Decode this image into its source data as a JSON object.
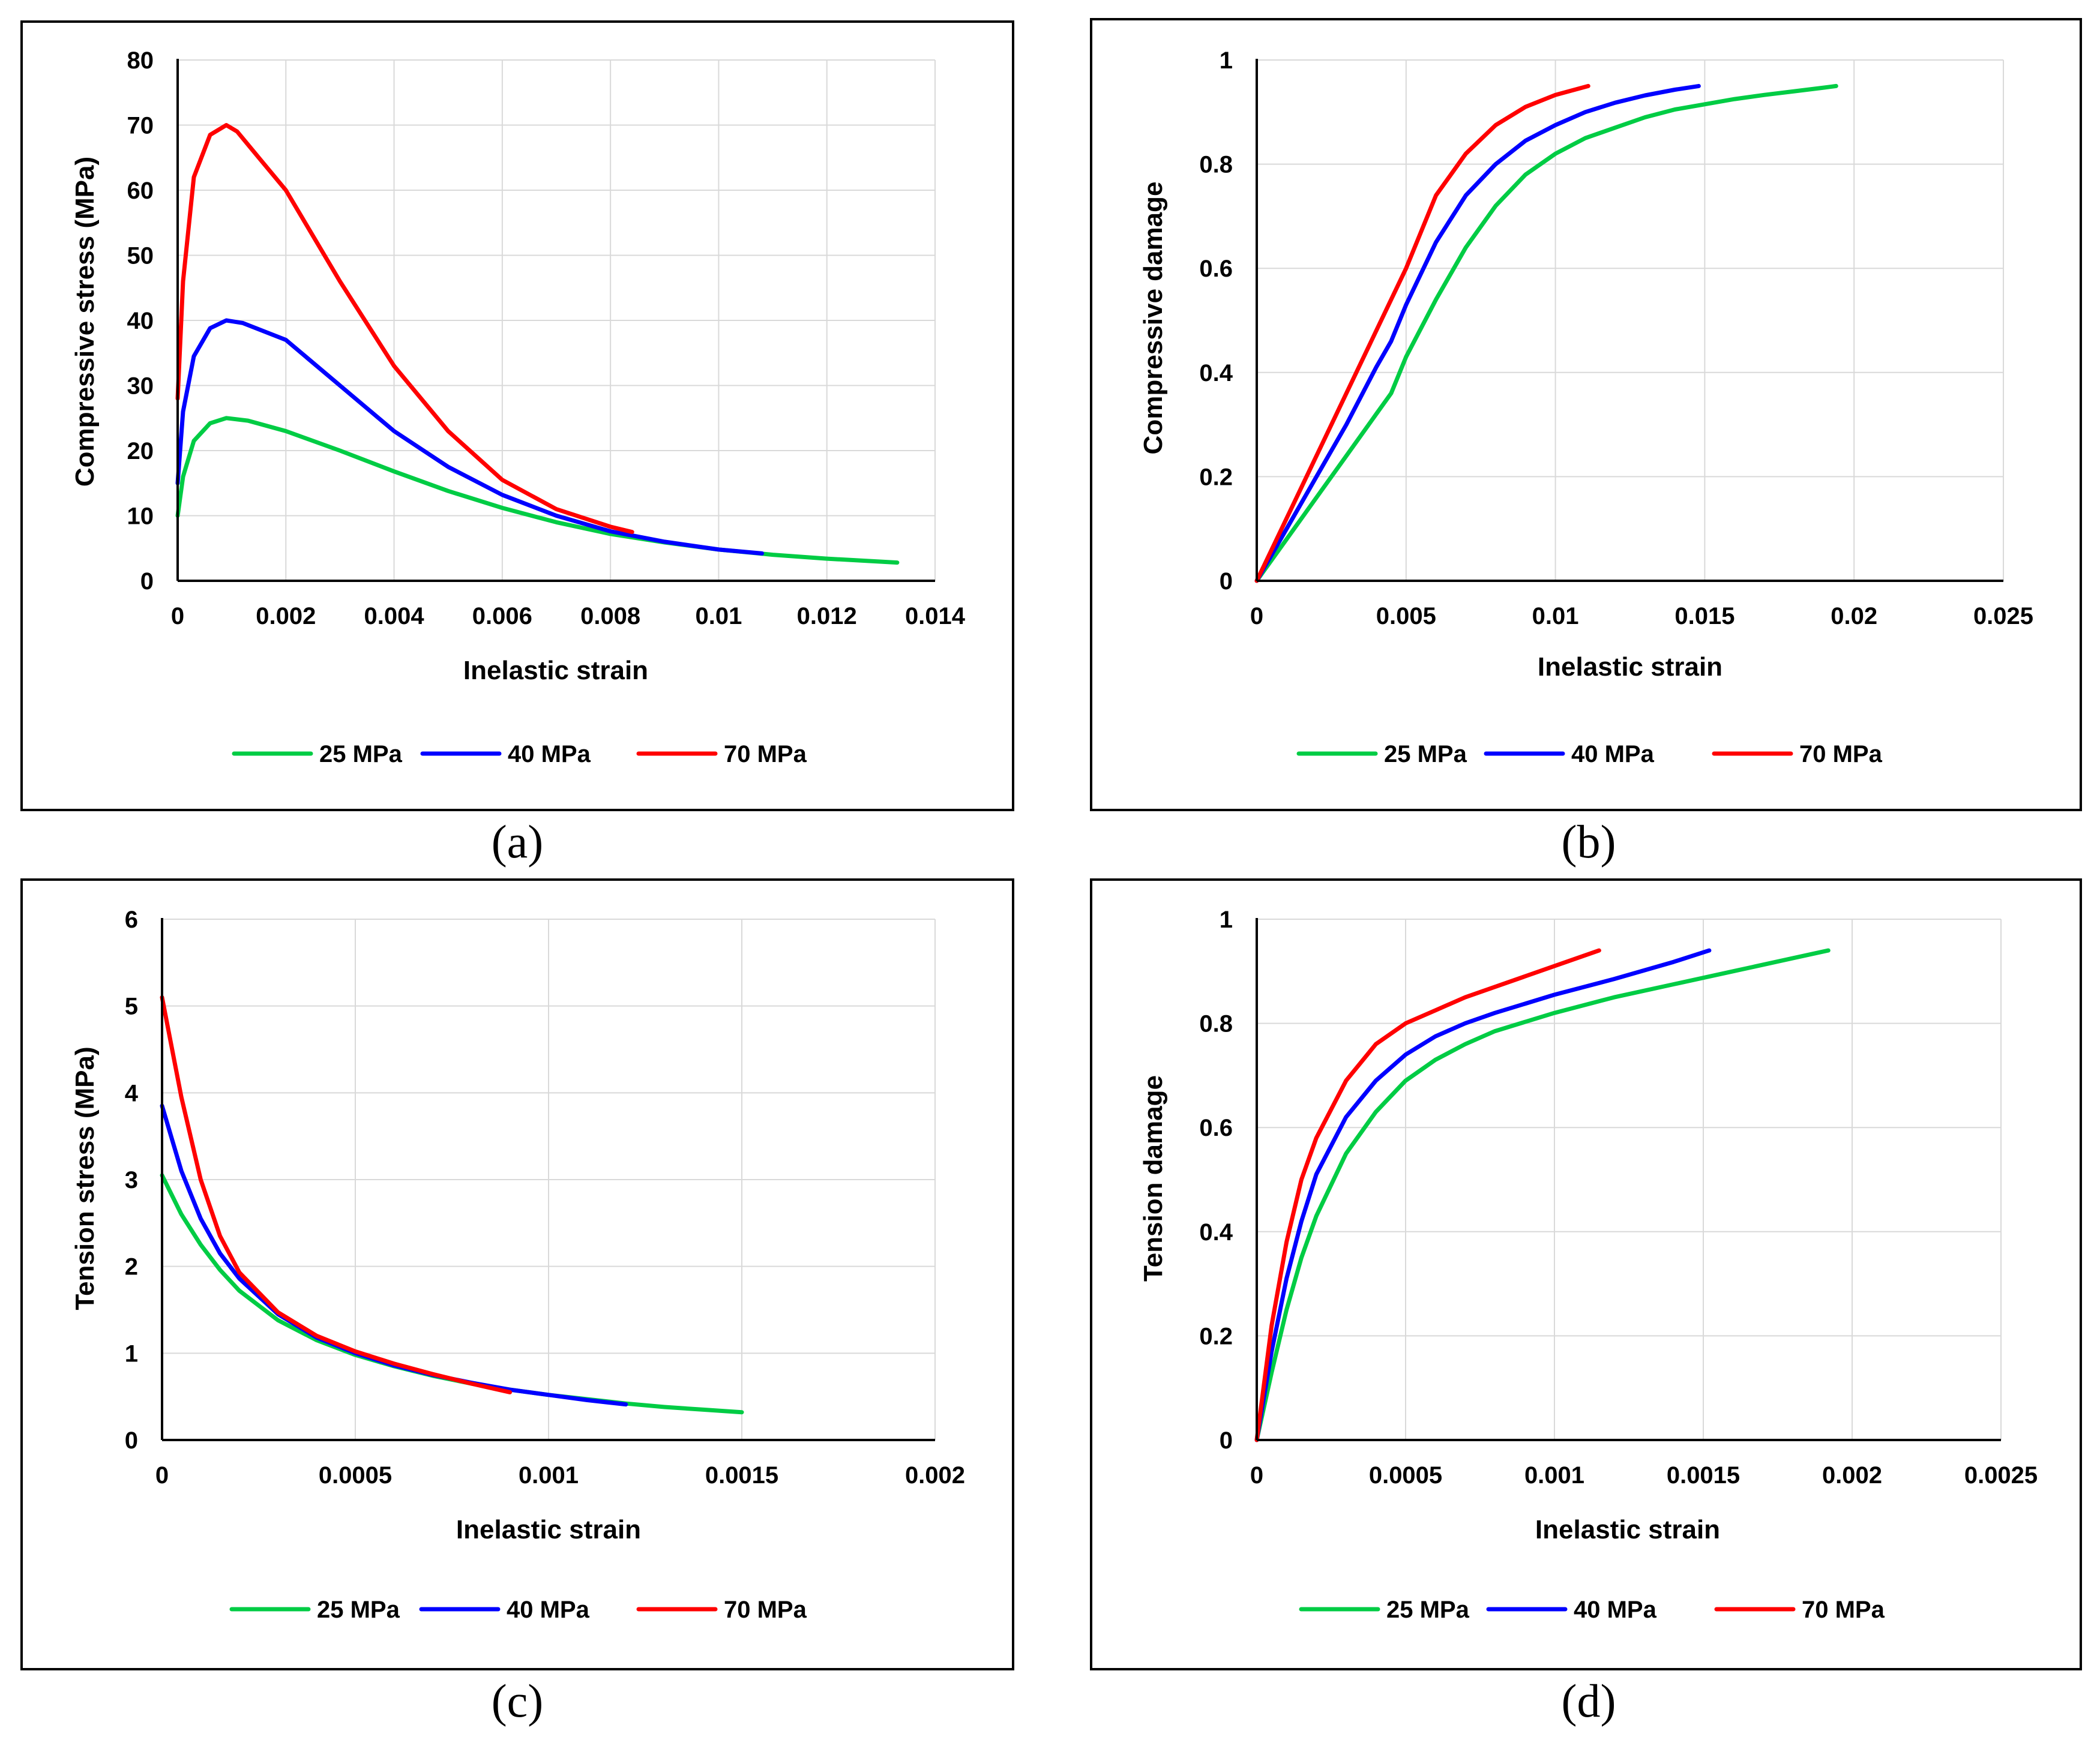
{
  "chart_data": [
    {
      "type": "line",
      "panel": "a",
      "caption": "(a)",
      "xlabel": "Inelastic strain",
      "ylabel": "Compressive stress (MPa)",
      "xlim": [
        0,
        0.014
      ],
      "ylim": [
        0,
        80
      ],
      "xticks": [
        0,
        0.002,
        0.004,
        0.006,
        0.008,
        0.01,
        0.012,
        0.014
      ],
      "xtick_labels": [
        "0",
        "0.002",
        "0.004",
        "0.006",
        "0.008",
        "0.01",
        "0.012",
        "0.014"
      ],
      "yticks": [
        0,
        10,
        20,
        30,
        40,
        50,
        60,
        70,
        80
      ],
      "ytick_labels": [
        "0",
        "10",
        "20",
        "30",
        "40",
        "50",
        "60",
        "70",
        "80"
      ],
      "legend_position": "bottom",
      "series": [
        {
          "name": "25 MPa",
          "color": "#00cc44",
          "x": [
            0,
            0.0001,
            0.0003,
            0.0006,
            0.0009,
            0.0013,
            0.002,
            0.003,
            0.004,
            0.005,
            0.006,
            0.007,
            0.008,
            0.009,
            0.01,
            0.011,
            0.012,
            0.0133
          ],
          "y": [
            10,
            16,
            21.5,
            24.2,
            25,
            24.6,
            23,
            20,
            16.8,
            13.8,
            11.2,
            9,
            7.2,
            5.9,
            4.8,
            4.0,
            3.4,
            2.8
          ]
        },
        {
          "name": "40 MPa",
          "color": "#0000ff",
          "x": [
            0,
            0.0001,
            0.0003,
            0.0006,
            0.0009,
            0.0012,
            0.002,
            0.003,
            0.004,
            0.005,
            0.006,
            0.007,
            0.008,
            0.009,
            0.01,
            0.0108
          ],
          "y": [
            15,
            26,
            34.5,
            38.8,
            40,
            39.6,
            37,
            30,
            23,
            17.5,
            13.2,
            10,
            7.6,
            6.0,
            4.8,
            4.2
          ]
        },
        {
          "name": "70 MPa",
          "color": "#ff0000",
          "x": [
            0,
            0.0001,
            0.0003,
            0.0006,
            0.0009,
            0.0011,
            0.0015,
            0.002,
            0.003,
            0.004,
            0.005,
            0.006,
            0.007,
            0.008,
            0.0084
          ],
          "y": [
            28,
            46,
            62,
            68.5,
            70,
            69,
            65,
            60,
            46,
            33,
            23,
            15.5,
            11,
            8.3,
            7.5
          ]
        }
      ]
    },
    {
      "type": "line",
      "panel": "b",
      "caption": "(b)",
      "xlabel": "Inelastic strain",
      "ylabel": "Compressive damage",
      "xlim": [
        0,
        0.025
      ],
      "ylim": [
        0,
        1
      ],
      "xticks": [
        0,
        0.005,
        0.01,
        0.015,
        0.02,
        0.025
      ],
      "xtick_labels": [
        "0",
        "0.005",
        "0.01",
        "0.015",
        "0.02",
        "0.025"
      ],
      "yticks": [
        0,
        0.2,
        0.4,
        0.6,
        0.8,
        1
      ],
      "ytick_labels": [
        "0",
        "0.2",
        "0.4",
        "0.6",
        "0.8",
        "1"
      ],
      "legend_position": "bottom",
      "series": [
        {
          "name": "25 MPa",
          "color": "#00cc44",
          "x": [
            0,
            0.001,
            0.002,
            0.003,
            0.004,
            0.0045,
            0.005,
            0.006,
            0.007,
            0.008,
            0.009,
            0.01,
            0.011,
            0.012,
            0.013,
            0.014,
            0.015,
            0.016,
            0.017,
            0.018,
            0.019,
            0.0194
          ],
          "y": [
            0,
            0.08,
            0.16,
            0.24,
            0.32,
            0.36,
            0.43,
            0.54,
            0.64,
            0.72,
            0.78,
            0.82,
            0.85,
            0.87,
            0.89,
            0.905,
            0.915,
            0.925,
            0.933,
            0.94,
            0.947,
            0.95
          ]
        },
        {
          "name": "40 MPa",
          "color": "#0000ff",
          "x": [
            0,
            0.001,
            0.002,
            0.003,
            0.004,
            0.0045,
            0.005,
            0.006,
            0.007,
            0.008,
            0.009,
            0.01,
            0.011,
            0.012,
            0.013,
            0.014,
            0.0148
          ],
          "y": [
            0,
            0.1,
            0.2,
            0.3,
            0.41,
            0.46,
            0.53,
            0.65,
            0.74,
            0.8,
            0.845,
            0.875,
            0.9,
            0.918,
            0.932,
            0.943,
            0.95
          ]
        },
        {
          "name": "70 MPa",
          "color": "#ff0000",
          "x": [
            0,
            0.001,
            0.002,
            0.003,
            0.004,
            0.005,
            0.0055,
            0.006,
            0.007,
            0.008,
            0.009,
            0.01,
            0.0111
          ],
          "y": [
            0,
            0.12,
            0.24,
            0.36,
            0.48,
            0.6,
            0.67,
            0.74,
            0.82,
            0.875,
            0.91,
            0.933,
            0.95
          ]
        }
      ]
    },
    {
      "type": "line",
      "panel": "c",
      "caption": "(c)",
      "xlabel": "Inelastic strain",
      "ylabel": "Tension stress (MPa)",
      "xlim": [
        0,
        0.002
      ],
      "ylim": [
        0,
        6
      ],
      "xticks": [
        0,
        0.0005,
        0.001,
        0.0015,
        0.002
      ],
      "xtick_labels": [
        "0",
        "0.0005",
        "0.001",
        "0.0015",
        "0.002"
      ],
      "yticks": [
        0,
        1,
        2,
        3,
        4,
        5,
        6
      ],
      "ytick_labels": [
        "0",
        "1",
        "2",
        "3",
        "4",
        "5",
        "6"
      ],
      "legend_position": "bottom",
      "series": [
        {
          "name": "25 MPa",
          "color": "#00cc44",
          "x": [
            0,
            5e-05,
            0.0001,
            0.00015,
            0.0002,
            0.0003,
            0.0004,
            0.0005,
            0.0006,
            0.0007,
            0.0008,
            0.0009,
            0.001,
            0.0011,
            0.0012,
            0.0013,
            0.0014,
            0.0015
          ],
          "y": [
            3.05,
            2.6,
            2.25,
            1.96,
            1.72,
            1.38,
            1.15,
            0.98,
            0.85,
            0.74,
            0.65,
            0.58,
            0.52,
            0.47,
            0.42,
            0.38,
            0.35,
            0.32
          ]
        },
        {
          "name": "40 MPa",
          "color": "#0000ff",
          "x": [
            0,
            5e-05,
            0.0001,
            0.00015,
            0.0002,
            0.0003,
            0.0004,
            0.0005,
            0.0006,
            0.0007,
            0.0008,
            0.0009,
            0.001,
            0.0011,
            0.0012
          ],
          "y": [
            3.85,
            3.1,
            2.55,
            2.15,
            1.86,
            1.45,
            1.18,
            1.0,
            0.86,
            0.75,
            0.66,
            0.58,
            0.52,
            0.46,
            0.41
          ]
        },
        {
          "name": "70 MPa",
          "color": "#ff0000",
          "x": [
            0,
            5e-05,
            0.0001,
            0.00015,
            0.0002,
            0.0003,
            0.0004,
            0.0005,
            0.0006,
            0.0007,
            0.0008,
            0.0009
          ],
          "y": [
            5.1,
            3.95,
            3.0,
            2.35,
            1.93,
            1.47,
            1.2,
            1.02,
            0.88,
            0.76,
            0.65,
            0.55
          ]
        }
      ]
    },
    {
      "type": "line",
      "panel": "d",
      "caption": "(d)",
      "xlabel": "Inelastic strain",
      "ylabel": "Tension damage",
      "xlim": [
        0,
        0.0025
      ],
      "ylim": [
        0,
        1
      ],
      "xticks": [
        0,
        0.0005,
        0.001,
        0.0015,
        0.002,
        0.0025
      ],
      "xtick_labels": [
        "0",
        "0.0005",
        "0.001",
        "0.0015",
        "0.002",
        "0.0025"
      ],
      "yticks": [
        0,
        0.2,
        0.4,
        0.6,
        0.8,
        1
      ],
      "ytick_labels": [
        "0",
        "0.2",
        "0.4",
        "0.6",
        "0.8",
        "1"
      ],
      "legend_position": "bottom",
      "series": [
        {
          "name": "25 MPa",
          "color": "#00cc44",
          "x": [
            0,
            5e-05,
            0.0001,
            0.00015,
            0.0002,
            0.0003,
            0.0004,
            0.0005,
            0.0006,
            0.0007,
            0.0008,
            0.001,
            0.0012,
            0.0014,
            0.0016,
            0.0018,
            0.00192
          ],
          "y": [
            0,
            0.13,
            0.25,
            0.35,
            0.43,
            0.55,
            0.63,
            0.69,
            0.73,
            0.76,
            0.785,
            0.82,
            0.85,
            0.875,
            0.9,
            0.925,
            0.94
          ]
        },
        {
          "name": "40 MPa",
          "color": "#0000ff",
          "x": [
            0,
            5e-05,
            0.0001,
            0.00015,
            0.0002,
            0.0003,
            0.0004,
            0.0005,
            0.0006,
            0.0007,
            0.0008,
            0.001,
            0.0012,
            0.0014,
            0.00152
          ],
          "y": [
            0,
            0.17,
            0.31,
            0.42,
            0.51,
            0.62,
            0.69,
            0.74,
            0.775,
            0.8,
            0.82,
            0.855,
            0.885,
            0.918,
            0.94
          ]
        },
        {
          "name": "70 MPa",
          "color": "#ff0000",
          "x": [
            0,
            5e-05,
            0.0001,
            0.00015,
            0.0002,
            0.0003,
            0.0004,
            0.0005,
            0.0006,
            0.0007,
            0.0008,
            0.001,
            0.00115
          ],
          "y": [
            0,
            0.22,
            0.38,
            0.5,
            0.58,
            0.69,
            0.76,
            0.8,
            0.825,
            0.85,
            0.87,
            0.91,
            0.94
          ]
        }
      ]
    }
  ]
}
